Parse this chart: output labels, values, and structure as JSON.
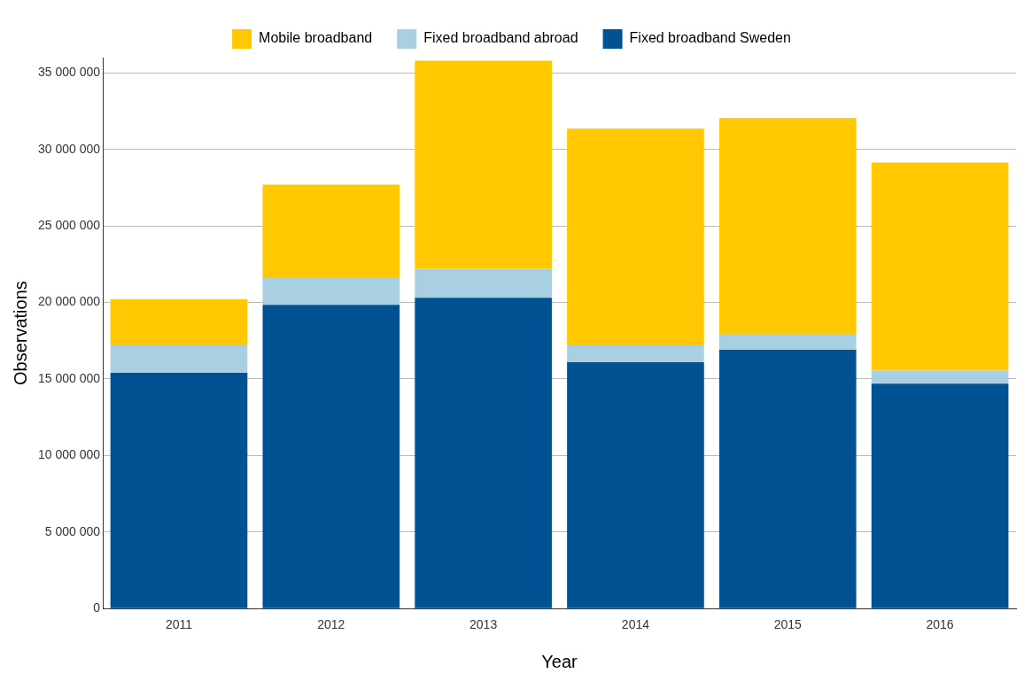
{
  "chart_data": {
    "type": "bar",
    "stacked": true,
    "xlabel": "Year",
    "ylabel": "Observations",
    "categories": [
      "2011",
      "2012",
      "2013",
      "2014",
      "2015",
      "2016"
    ],
    "series": [
      {
        "name": "Fixed broadband Sweden",
        "color": "#005293",
        "values": [
          15400000,
          19850000,
          20300000,
          16100000,
          16900000,
          14700000
        ]
      },
      {
        "name": "Fixed broadband abroad",
        "color": "#a8cfe2",
        "values": [
          1800000,
          1750000,
          1900000,
          1100000,
          1050000,
          850000
        ]
      },
      {
        "name": "Mobile broadband",
        "color": "#ffc800",
        "values": [
          3000000,
          6100000,
          13600000,
          14150000,
          14100000,
          13600000
        ]
      }
    ],
    "ylim": [
      0,
      36000000
    ],
    "yticks": [
      {
        "value": 0,
        "label": "0"
      },
      {
        "value": 5000000,
        "label": "5 000 000"
      },
      {
        "value": 10000000,
        "label": "10 000 000"
      },
      {
        "value": 15000000,
        "label": "15 000 000"
      },
      {
        "value": 20000000,
        "label": "20 000 000"
      },
      {
        "value": 25000000,
        "label": "25 000 000"
      },
      {
        "value": 30000000,
        "label": "30 000 000"
      },
      {
        "value": 35000000,
        "label": "35 000 000"
      }
    ],
    "grid": "y",
    "legend": "top"
  }
}
